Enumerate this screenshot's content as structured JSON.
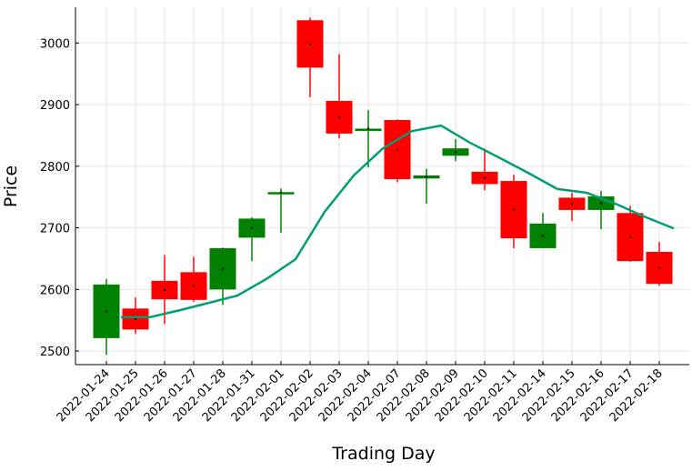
{
  "chart_data": {
    "type": "candlestick",
    "title": "",
    "xlabel": "Trading Day",
    "ylabel": "Price",
    "ylim": [
      2478,
      3058
    ],
    "yticks": [
      2500,
      2600,
      2700,
      2800,
      2900,
      3000
    ],
    "grid": true,
    "legend": "none",
    "colors": {
      "up": "#008000",
      "down": "#ff0000",
      "ma": "#009e73",
      "grid": "#e6e6e6"
    },
    "categories": [
      "2022-01-24",
      "2022-01-25",
      "2022-01-26",
      "2022-01-27",
      "2022-01-28",
      "2022-01-31",
      "2022-02-01",
      "2022-02-02",
      "2022-02-03",
      "2022-02-04",
      "2022-02-07",
      "2022-02-08",
      "2022-02-09",
      "2022-02-10",
      "2022-02-11",
      "2022-02-14",
      "2022-02-15",
      "2022-02-16",
      "2022-02-17",
      "2022-02-18"
    ],
    "open": [
      2521,
      2569,
      2614,
      2628,
      2600,
      2684,
      2757,
      3037,
      2906,
      2861,
      2875,
      2780,
      2817,
      2791,
      2776,
      2667,
      2749,
      2729,
      2724,
      2661
    ],
    "high": [
      2617,
      2587,
      2656,
      2653,
      2668,
      2717,
      2764,
      3041,
      2982,
      2891,
      2876,
      2796,
      2844,
      2829,
      2786,
      2724,
      2757,
      2760,
      2736,
      2677
    ],
    "low": [
      2494,
      2528,
      2544,
      2580,
      2575,
      2646,
      2692,
      2912,
      2845,
      2798,
      2774,
      2739,
      2808,
      2761,
      2667,
      2667,
      2711,
      2698,
      2645,
      2606
    ],
    "close": [
      2608,
      2535,
      2584,
      2583,
      2667,
      2715,
      2758,
      2960,
      2853,
      2861,
      2779,
      2785,
      2829,
      2771,
      2683,
      2707,
      2729,
      2751,
      2646,
      2609
    ],
    "moving_average": {
      "x_index": [
        0.5,
        1.5,
        2.5,
        3.5,
        4.5,
        5.5,
        6.5,
        7.5,
        8.5,
        9.5,
        10.5,
        11.5,
        12.5,
        13.5,
        14.5,
        15.5,
        16.5,
        17.5,
        18.5,
        19.5
      ],
      "values": [
        2555,
        2555,
        2566,
        2578,
        2590,
        2617,
        2649,
        2726,
        2785,
        2829,
        2857,
        2866,
        2838,
        2814,
        2789,
        2763,
        2757,
        2739,
        2718,
        2699
      ]
    }
  }
}
